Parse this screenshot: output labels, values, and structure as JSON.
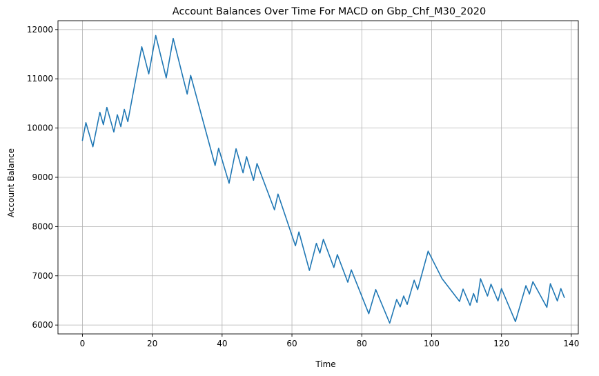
{
  "chart_data": {
    "type": "line",
    "title": "Account Balances Over Time For MACD on Gbp_Chf_M30_2020",
    "xlabel": "Time",
    "ylabel": "Account Balance",
    "xlim": [
      -7,
      142
    ],
    "ylim": [
      5820,
      12180
    ],
    "xticks": [
      0,
      20,
      40,
      60,
      80,
      100,
      120,
      140
    ],
    "yticks": [
      6000,
      7000,
      8000,
      9000,
      10000,
      11000,
      12000
    ],
    "grid": true,
    "legend": "none",
    "line_color": "#1f77b4",
    "series": [
      {
        "x": [
          0,
          1,
          3,
          5,
          6,
          7,
          9,
          10,
          11,
          12,
          13,
          17,
          19,
          21,
          24,
          26,
          30,
          31,
          38,
          39,
          42,
          44,
          46,
          47,
          49,
          50,
          55,
          56,
          61,
          62,
          65,
          67,
          68,
          69,
          72,
          73,
          76,
          77,
          82,
          84,
          88,
          90,
          91,
          92,
          93,
          95,
          96,
          99,
          103,
          108,
          109,
          111,
          112,
          113,
          114,
          116,
          117,
          119,
          120,
          124,
          127,
          128,
          129,
          133,
          134,
          136,
          137,
          138
        ],
        "y": [
          9750,
          10110,
          9620,
          10320,
          10070,
          10420,
          9920,
          10270,
          10030,
          10380,
          10130,
          11650,
          11100,
          11880,
          11020,
          11820,
          10690,
          11070,
          9240,
          9590,
          8880,
          9580,
          9090,
          9420,
          8940,
          9280,
          8340,
          8660,
          7610,
          7890,
          7110,
          7660,
          7460,
          7740,
          7170,
          7430,
          6870,
          7120,
          6230,
          6720,
          6040,
          6520,
          6370,
          6590,
          6420,
          6910,
          6720,
          7500,
          6940,
          6480,
          6730,
          6400,
          6640,
          6460,
          6940,
          6590,
          6830,
          6490,
          6740,
          6070,
          6800,
          6630,
          6880,
          6360,
          6840,
          6490,
          6740,
          6560
        ]
      }
    ]
  }
}
